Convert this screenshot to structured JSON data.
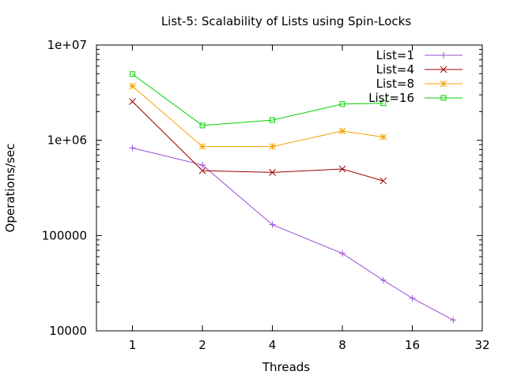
{
  "chart_data": {
    "type": "line",
    "title": "List-5: Scalability of Lists using Spin-Locks",
    "xlabel": "Threads",
    "ylabel": "Operations/sec",
    "xscale": "log2",
    "yscale": "log10",
    "xlim": [
      0.7,
      32
    ],
    "ylim": [
      10000,
      10000000
    ],
    "x_ticks": [
      {
        "value": 1,
        "label": "1"
      },
      {
        "value": 2,
        "label": "2"
      },
      {
        "value": 4,
        "label": "4"
      },
      {
        "value": 8,
        "label": "8"
      },
      {
        "value": 16,
        "label": "16"
      },
      {
        "value": 32,
        "label": "32"
      }
    ],
    "y_ticks": [
      {
        "value": 10000,
        "label": "10000"
      },
      {
        "value": 100000,
        "label": "100000"
      },
      {
        "value": 1000000,
        "label": "1e+06"
      },
      {
        "value": 10000000,
        "label": "1e+07"
      }
    ],
    "grid": false,
    "legend_position": "top-right",
    "series": [
      {
        "name": "List=1",
        "color": "#9b4dd6",
        "marker": "plus",
        "x": [
          1,
          2,
          4,
          8,
          12,
          16,
          24
        ],
        "values": [
          830000,
          550000,
          130000,
          65000,
          34000,
          22000,
          13000
        ]
      },
      {
        "name": "List=4",
        "color": "#a00000",
        "marker": "cross",
        "x": [
          1,
          2,
          4,
          8,
          12
        ],
        "values": [
          2550000,
          480000,
          460000,
          500000,
          375000
        ]
      },
      {
        "name": "List=8",
        "color": "#f0a000",
        "marker": "star",
        "x": [
          1,
          2,
          4,
          8,
          12
        ],
        "values": [
          3700000,
          860000,
          860000,
          1250000,
          1080000
        ]
      },
      {
        "name": "List=16",
        "color": "#00d000",
        "marker": "square",
        "x": [
          1,
          2,
          4,
          8,
          12
        ],
        "values": [
          4950000,
          1430000,
          1630000,
          2400000,
          2450000
        ]
      }
    ]
  }
}
